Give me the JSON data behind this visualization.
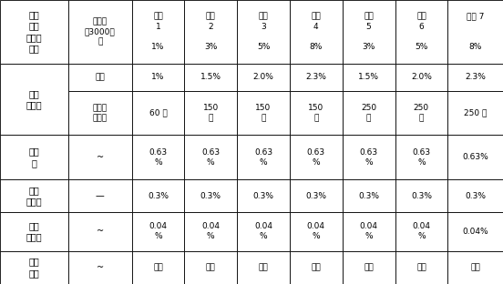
{
  "figsize": [
    5.52,
    3.12
  ],
  "dpi": 100,
  "font_size": 7.0,
  "background": "#ffffff",
  "line_color": "#000000",
  "col_widths_raw": [
    1.3,
    1.2,
    1.0,
    1.0,
    1.0,
    1.0,
    1.0,
    1.0,
    1.05
  ],
  "row_heights_raw": [
    2.3,
    1.0,
    1.6,
    1.6,
    1.2,
    1.4,
    1.2
  ],
  "row0": {
    "col0": "处方\n依葡\n酸氯替\n泼洛",
    "col1": "粒径小\n于3000纳\n米",
    "headers": [
      "处方\n1",
      "处方\n2",
      "处方\n3",
      "处方\n4",
      "处方\n5",
      "处方\n6"
    ],
    "values": [
      "1%",
      "3%",
      "5%",
      "8%",
      "3%",
      "5%"
    ],
    "col8_hdr": "处方 7",
    "col8_val": "8%"
  },
  "row_HA_label": "透明\n质酸钠",
  "row1_label": "含量",
  "row1_vals": [
    "1%",
    "1.5%",
    "2.0%",
    "2.3%",
    "1.5%",
    "2.0%",
    "2.3%"
  ],
  "row2_label": "分子量\n道尔顿",
  "row2_vals": [
    "60 万",
    "150\n万",
    "150\n万",
    "150\n万",
    "250\n万",
    "250\n万",
    "250 万"
  ],
  "row3_label0": "氯化\n钠",
  "row3_label1": "~",
  "row3_vals": [
    "0.63\n%",
    "0.63\n%",
    "0.63\n%",
    "0.63\n%",
    "0.63\n%",
    "0.63\n%",
    "0.63%"
  ],
  "row4_label": "磷酸\n氢二钠",
  "row4_dash": "—",
  "row4_vals": [
    "0.3%",
    "0.3%",
    "0.3%",
    "0.3%",
    "0.3%",
    "0.3%",
    "0.3%"
  ],
  "row5_label": "磷酸\n二氢钠",
  "row5_dash": "~",
  "row5_vals": [
    "0.04\n%",
    "0.04\n%",
    "0.04\n%",
    "0.04\n%",
    "0.04\n%",
    "0.04\n%",
    "0.04%"
  ],
  "row6_label": "注射\n用水",
  "row6_dash": "~",
  "row6_vals": [
    "适量",
    "适量",
    "适量",
    "适量",
    "适量",
    "适量",
    "适量"
  ]
}
